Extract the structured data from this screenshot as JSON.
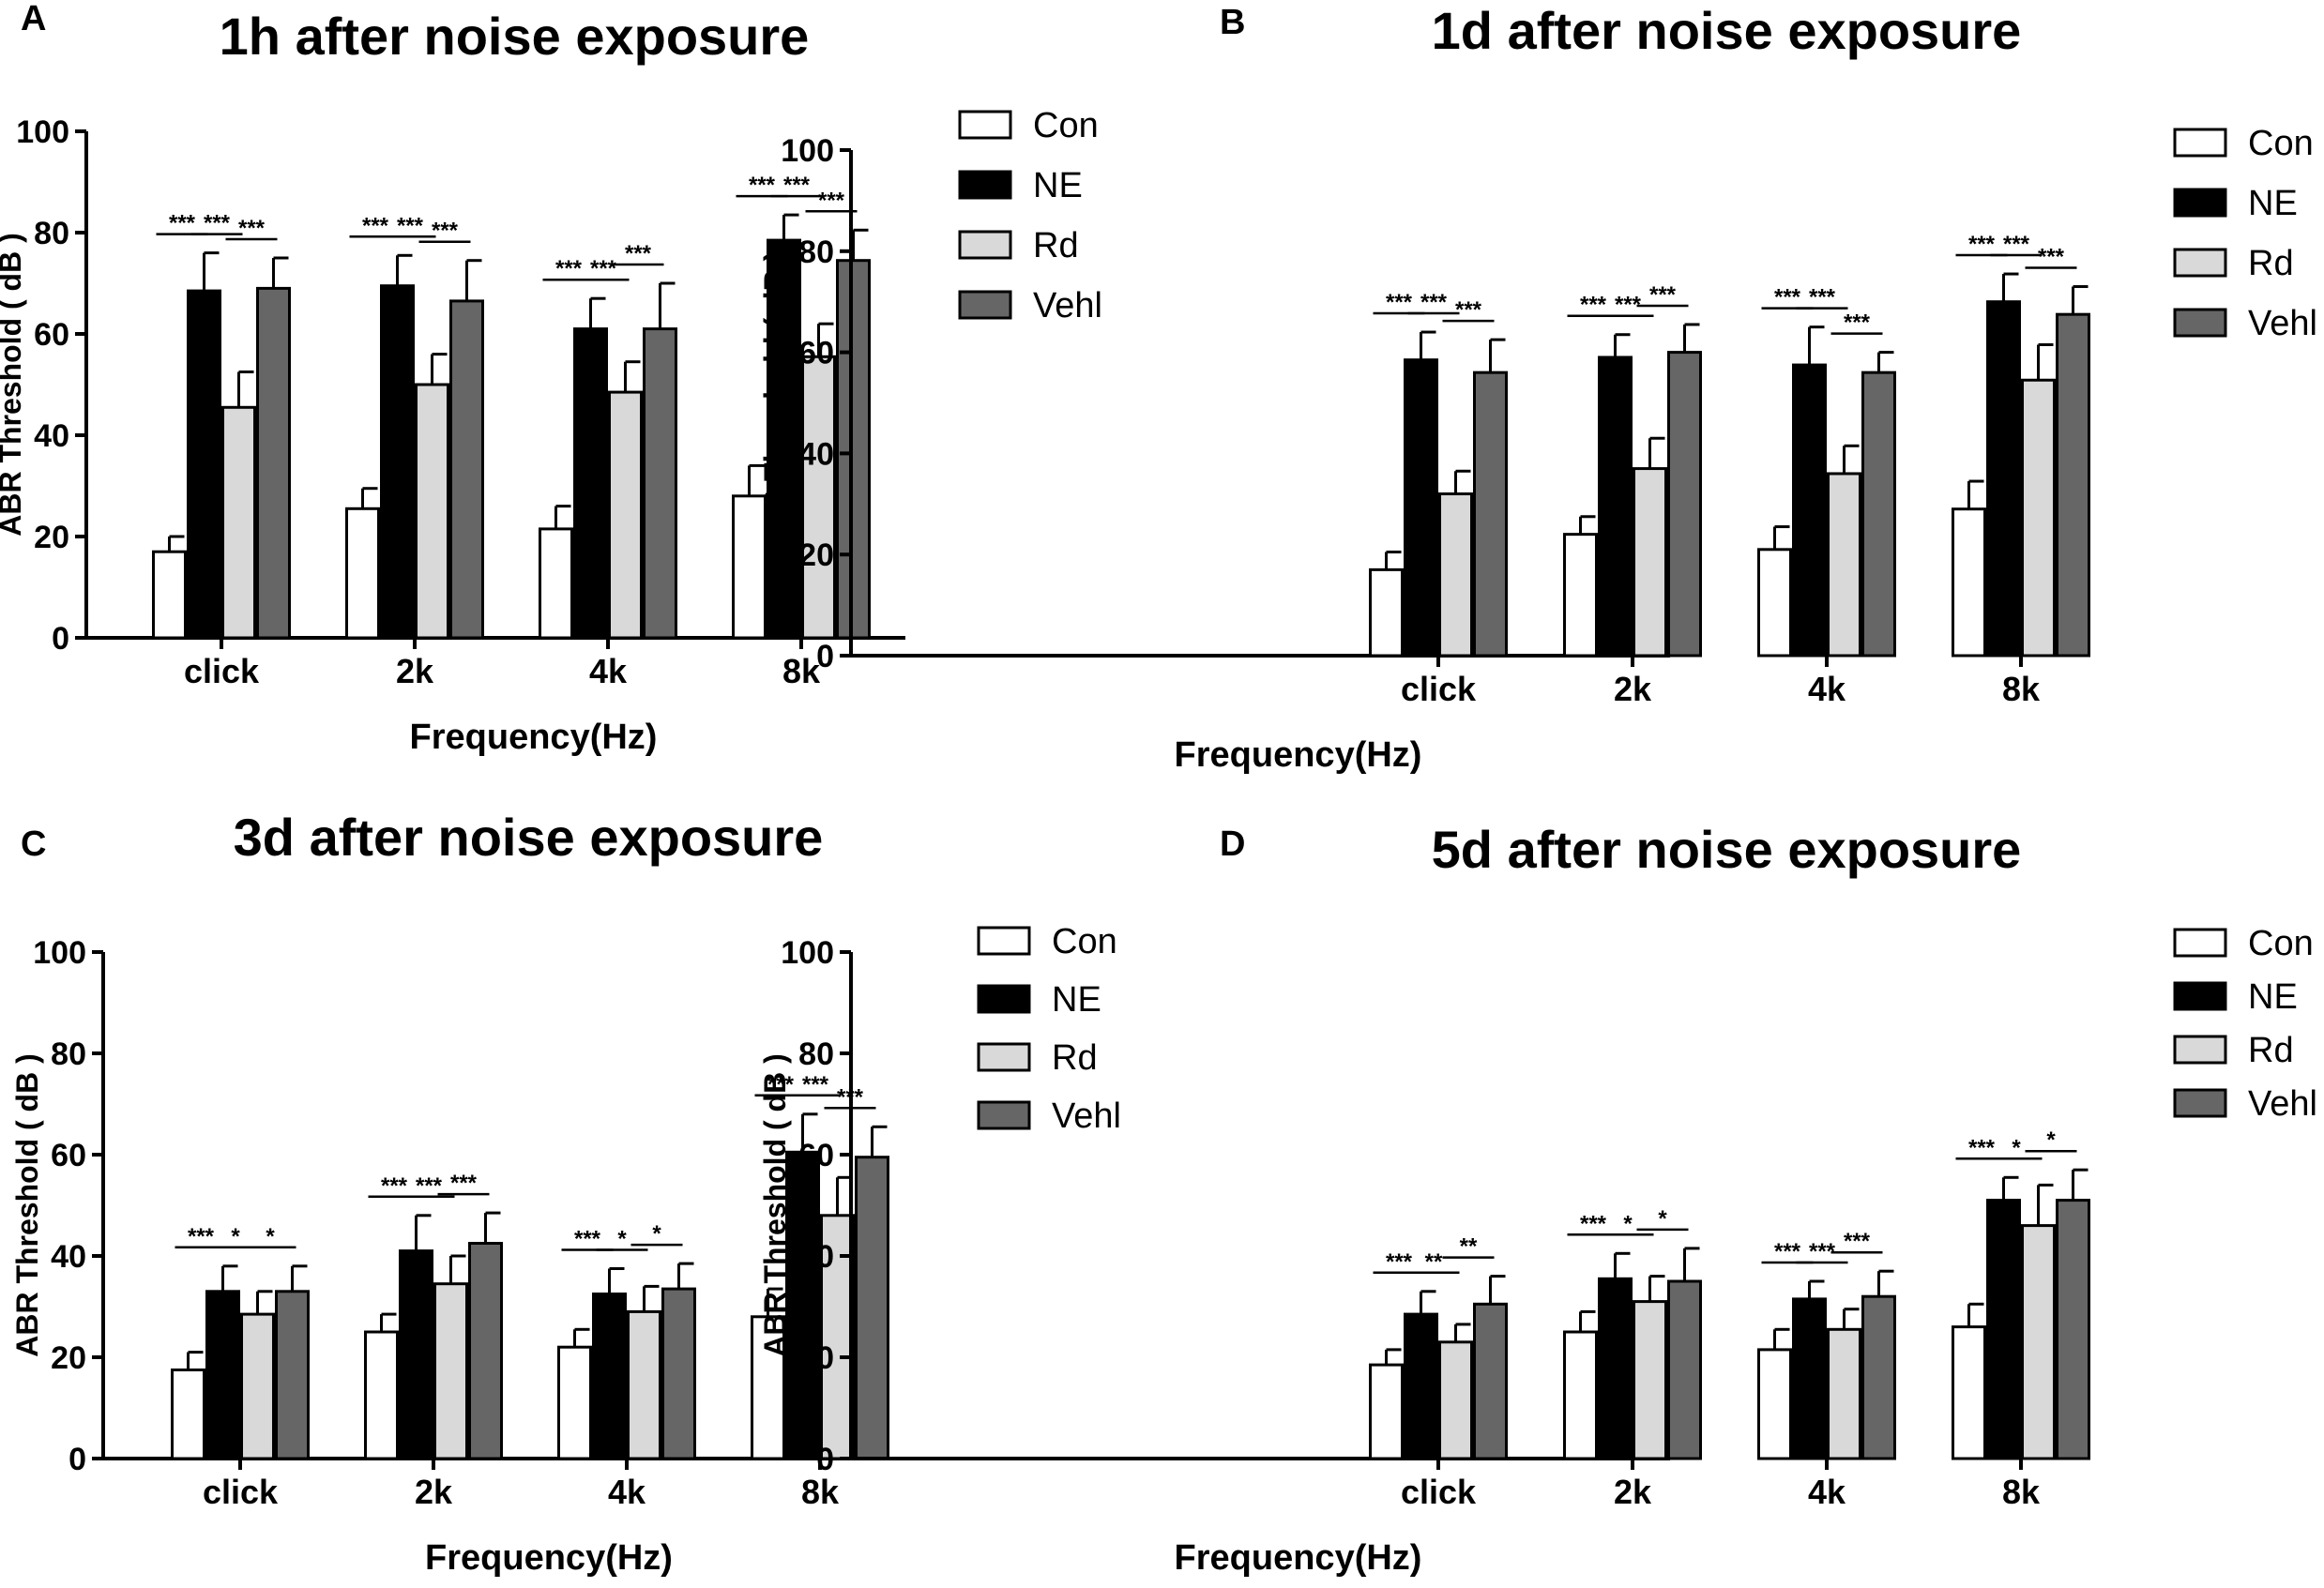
{
  "figure": {
    "panels": [
      {
        "label": "A"
      },
      {
        "label": "B"
      },
      {
        "label": "C"
      },
      {
        "label": "D"
      }
    ]
  },
  "chart_data": [
    {
      "type": "bar",
      "panel": "A",
      "title": "1h after noise exposure",
      "xlabel": "Frequency(Hz)",
      "ylabel": "ABR Threshold ( dB )",
      "ylim": [
        0,
        100
      ],
      "yticks": [
        0,
        20,
        40,
        60,
        80,
        100
      ],
      "categories": [
        "click",
        "2k",
        "4k",
        "8k"
      ],
      "legend_position": "right",
      "series": [
        {
          "name": "Con",
          "color": "#ffffff",
          "values": [
            17,
            25.5,
            21.5,
            28
          ],
          "errors": [
            3,
            4,
            4.5,
            6
          ]
        },
        {
          "name": "NE",
          "color": "#000000",
          "values": [
            68.5,
            69.5,
            61,
            78.5
          ],
          "errors": [
            7.5,
            6,
            6,
            5
          ]
        },
        {
          "name": "Rd",
          "color": "#d9d9d9",
          "values": [
            45.5,
            50,
            48.5,
            55.5
          ],
          "errors": [
            7,
            6,
            6,
            6.5
          ]
        },
        {
          "name": "Vehl",
          "color": "#666666",
          "values": [
            69,
            66.5,
            61,
            74.5
          ],
          "errors": [
            6,
            8,
            9,
            6
          ]
        }
      ],
      "significance": [
        [
          {
            "label": "***"
          },
          {
            "label": "***"
          },
          {
            "label": "***"
          }
        ],
        [
          {
            "label": "***"
          },
          {
            "label": "***"
          },
          {
            "label": "***"
          }
        ],
        [
          {
            "label": "***"
          },
          {
            "label": "***"
          },
          {
            "label": "***"
          }
        ],
        [
          {
            "label": "***"
          },
          {
            "label": "***"
          },
          {
            "label": "***"
          }
        ]
      ]
    },
    {
      "type": "bar",
      "panel": "B",
      "title": "1d after noise exposure",
      "xlabel": "Frequency(Hz)",
      "ylabel": "ABR Threshold ( dB )",
      "ylim": [
        0,
        100
      ],
      "yticks": [
        0,
        20,
        40,
        60,
        80,
        100
      ],
      "categories": [
        "click",
        "2k",
        "4k",
        "8k"
      ],
      "legend_position": "right",
      "series": [
        {
          "name": "Con",
          "color": "#ffffff",
          "values": [
            17,
            24,
            21,
            29
          ],
          "errors": [
            3.5,
            3.5,
            4.5,
            5.5
          ]
        },
        {
          "name": "NE",
          "color": "#000000",
          "values": [
            58.5,
            59,
            57.5,
            70
          ],
          "errors": [
            5.5,
            4.5,
            7.5,
            5.5
          ]
        },
        {
          "name": "Rd",
          "color": "#d9d9d9",
          "values": [
            32,
            37,
            36,
            54.5
          ],
          "errors": [
            4.5,
            6,
            5.5,
            7
          ]
        },
        {
          "name": "Vehl",
          "color": "#666666",
          "values": [
            56,
            60,
            56,
            67.5
          ],
          "errors": [
            6.5,
            5.5,
            4,
            5.5
          ]
        }
      ],
      "significance": [
        [
          {
            "label": "***"
          },
          {
            "label": "***"
          },
          {
            "label": "***"
          }
        ],
        [
          {
            "label": "***"
          },
          {
            "label": "***"
          },
          {
            "label": "***"
          }
        ],
        [
          {
            "label": "***"
          },
          {
            "label": "***"
          },
          {
            "label": "***"
          }
        ],
        [
          {
            "label": "***"
          },
          {
            "label": "***"
          },
          {
            "label": "***"
          }
        ]
      ]
    },
    {
      "type": "bar",
      "panel": "C",
      "title": "3d after noise exposure",
      "xlabel": "Frequency(Hz)",
      "ylabel": "ABR Threshold ( dB )",
      "ylim": [
        0,
        100
      ],
      "yticks": [
        0,
        20,
        40,
        60,
        80,
        100
      ],
      "categories": [
        "click",
        "2k",
        "4k",
        "8k"
      ],
      "legend_position": "right",
      "series": [
        {
          "name": "Con",
          "color": "#ffffff",
          "values": [
            17.5,
            25,
            22,
            28
          ],
          "errors": [
            3.5,
            3.5,
            3.5,
            5.5
          ]
        },
        {
          "name": "NE",
          "color": "#000000",
          "values": [
            33,
            41,
            32.5,
            60.5
          ],
          "errors": [
            5,
            7,
            5,
            7.5
          ]
        },
        {
          "name": "Rd",
          "color": "#d9d9d9",
          "values": [
            28.5,
            34.5,
            29,
            48
          ],
          "errors": [
            4.5,
            5.5,
            5,
            7.5
          ]
        },
        {
          "name": "Vehl",
          "color": "#666666",
          "values": [
            33,
            42.5,
            33.5,
            59.5
          ],
          "errors": [
            5,
            6,
            5,
            6
          ]
        }
      ],
      "significance": [
        [
          {
            "label": "***"
          },
          {
            "label": "*"
          },
          {
            "label": "*"
          }
        ],
        [
          {
            "label": "***"
          },
          {
            "label": "***"
          },
          {
            "label": "***"
          }
        ],
        [
          {
            "label": "***"
          },
          {
            "label": "*"
          },
          {
            "label": "*"
          }
        ],
        [
          {
            "label": "***"
          },
          {
            "label": "***"
          },
          {
            "label": "***"
          }
        ]
      ]
    },
    {
      "type": "bar",
      "panel": "D",
      "title": "5d after noise exposure",
      "xlabel": "Frequency(Hz)",
      "ylabel": "ABR Threshold ( dB )",
      "ylim": [
        0,
        100
      ],
      "yticks": [
        0,
        20,
        40,
        60,
        80,
        100
      ],
      "categories": [
        "click",
        "2k",
        "4k",
        "8k"
      ],
      "legend_position": "right",
      "series": [
        {
          "name": "Con",
          "color": "#ffffff",
          "values": [
            18.5,
            25,
            21.5,
            26
          ],
          "errors": [
            3,
            4,
            4,
            4.5
          ]
        },
        {
          "name": "NE",
          "color": "#000000",
          "values": [
            28.5,
            35.5,
            31.5,
            51
          ],
          "errors": [
            4.5,
            5,
            3.5,
            4.5
          ]
        },
        {
          "name": "Rd",
          "color": "#d9d9d9",
          "values": [
            23,
            31,
            25.5,
            46
          ],
          "errors": [
            3.5,
            5,
            4,
            8
          ]
        },
        {
          "name": "Vehl",
          "color": "#666666",
          "values": [
            30.5,
            35,
            32,
            51
          ],
          "errors": [
            5.5,
            6.5,
            5,
            6
          ]
        }
      ],
      "significance": [
        [
          {
            "label": "***"
          },
          {
            "label": "**"
          },
          {
            "label": "**"
          }
        ],
        [
          {
            "label": "***"
          },
          {
            "label": "*"
          },
          {
            "label": "*"
          }
        ],
        [
          {
            "label": "***"
          },
          {
            "label": "***"
          },
          {
            "label": "***"
          }
        ],
        [
          {
            "label": "***"
          },
          {
            "label": "*"
          },
          {
            "label": "*"
          }
        ]
      ]
    }
  ]
}
